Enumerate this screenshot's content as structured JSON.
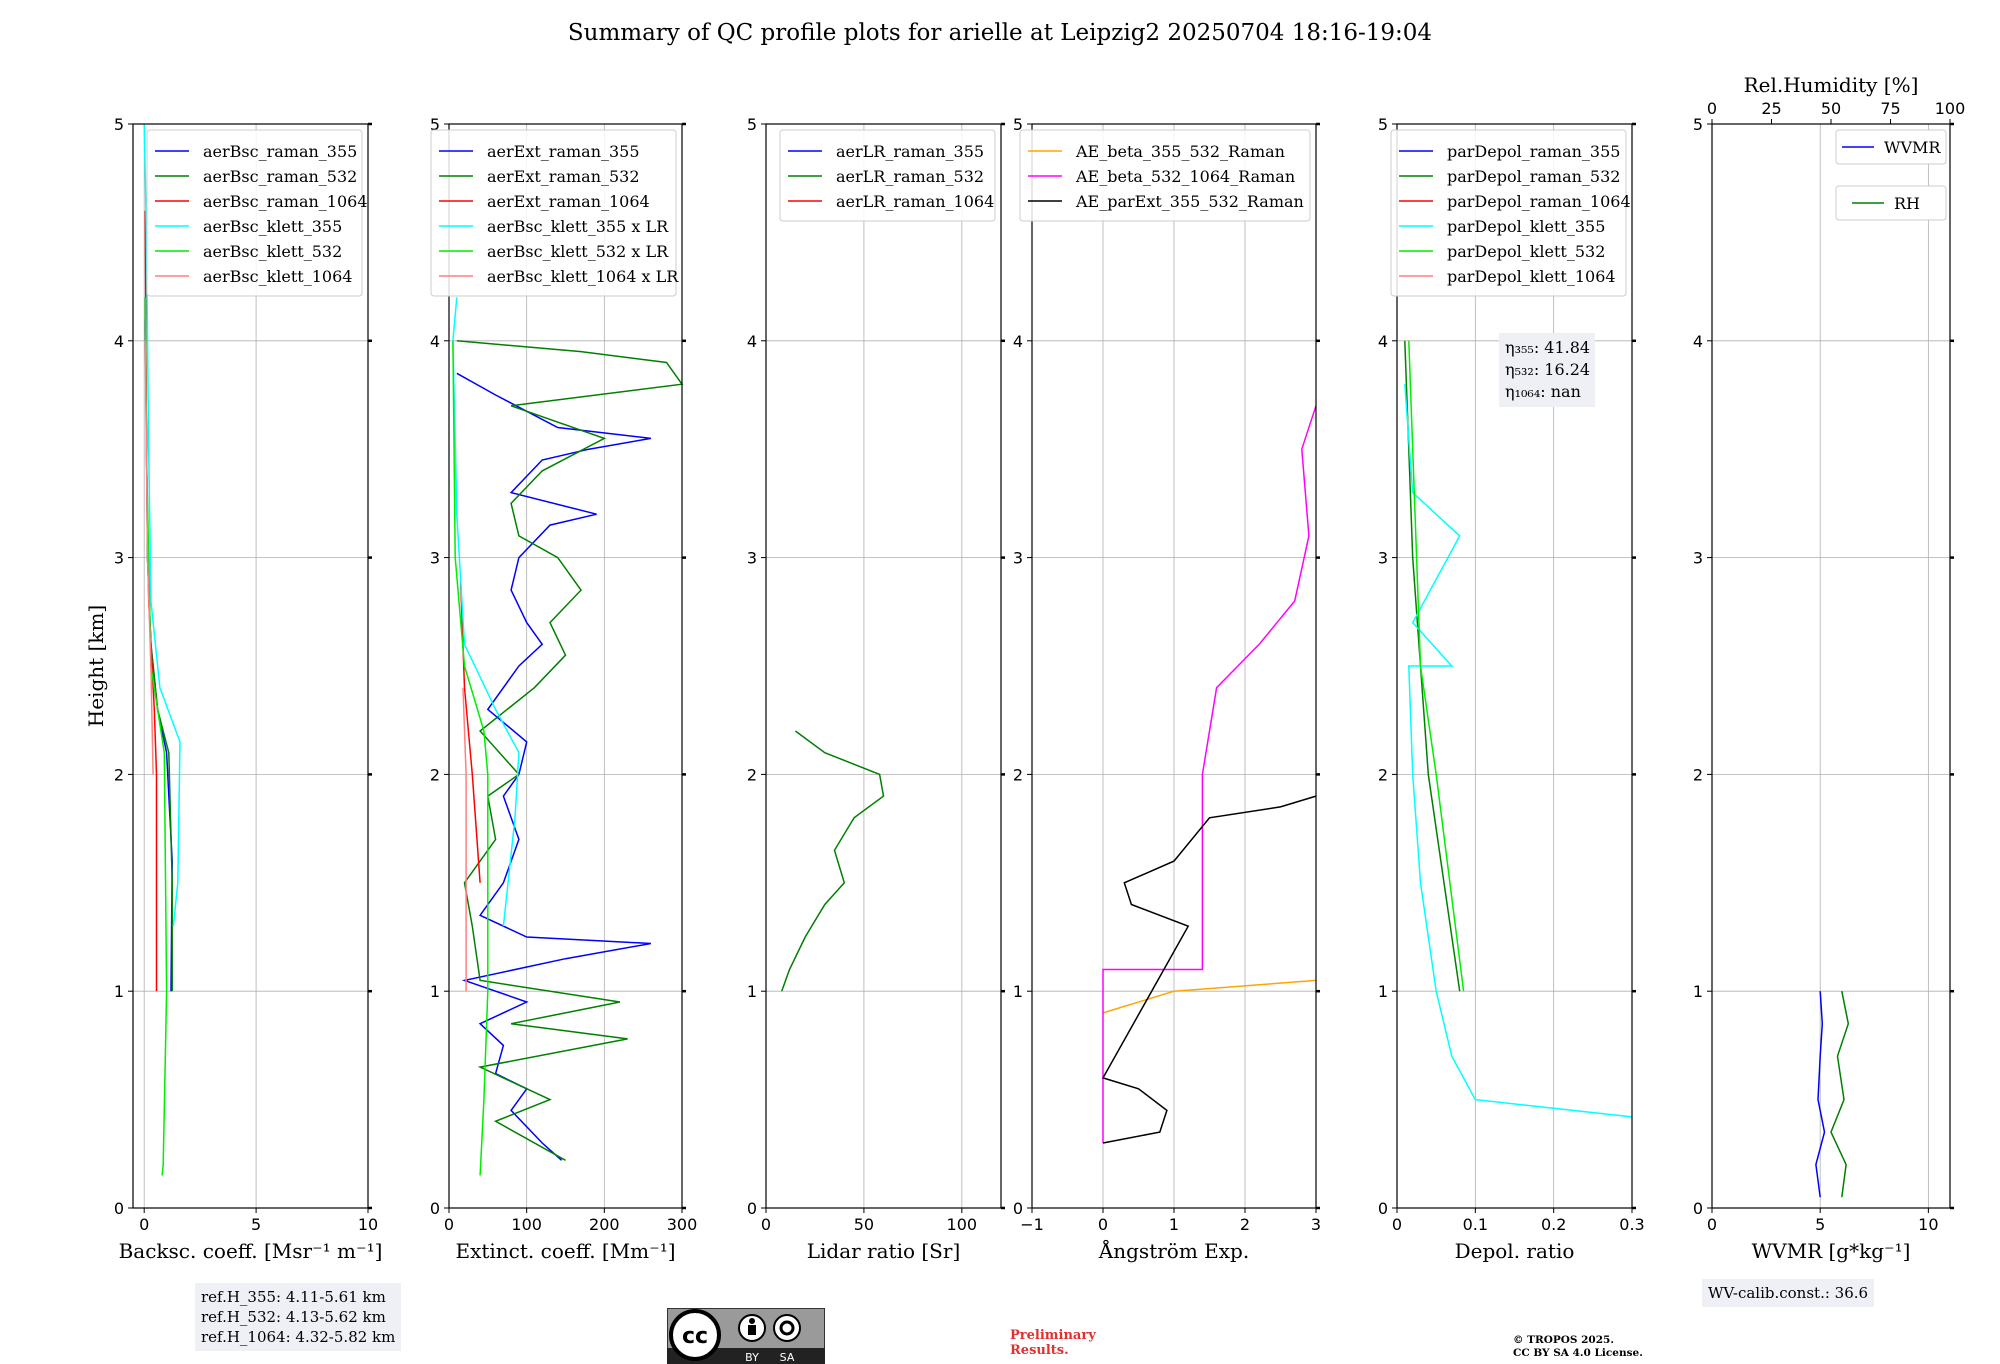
{
  "title": "Summary of QC profile plots for arielle at Leipzig2 20250704 18:16-19:04",
  "ylabel": "Height [km]",
  "footer": {
    "ref_heights": [
      "ref.H_355: 4.11-5.61 km",
      "ref.H_532: 4.13-5.62 km",
      "ref.H_1064: 4.32-5.82 km"
    ],
    "wv_calib": "WV-calib.const.: 36.6",
    "preliminary": [
      "Preliminary",
      "Results."
    ],
    "copyright": [
      "© TROPOS 2025.",
      "CC BY SA 4.0 License."
    ],
    "license_badge": {
      "by": "BY",
      "sa": "SA"
    }
  },
  "colors": {
    "blue": "#0000ff",
    "green": "#008000",
    "red": "#ff0000",
    "cyan": "#00ffff",
    "lime": "#00ee00",
    "pink": "#ff7f7f",
    "orange": "#ffa500",
    "magenta": "#ff00ff",
    "black": "#000000"
  },
  "chart_data": [
    {
      "type": "line",
      "xlabel": "Backsc. coeff. [Msr⁻¹ m⁻¹]",
      "ylabel": "Height [km]",
      "xlim": [
        -0.5,
        10
      ],
      "ylim": [
        0,
        5
      ],
      "xticks": [
        0,
        5,
        10
      ],
      "yticks": [
        0,
        1,
        2,
        3,
        4,
        5
      ],
      "grid": true,
      "legend_position": "upper-right",
      "series": [
        {
          "name": "aerBsc_raman_355",
          "color": "blue",
          "points": [
            [
              0.05,
              4.1
            ],
            [
              0.1,
              3.6
            ],
            [
              0.15,
              3
            ],
            [
              0.3,
              2.6
            ],
            [
              0.6,
              2.3
            ],
            [
              1.0,
              2.1
            ],
            [
              1.25,
              1.6
            ],
            [
              1.2,
              1.0
            ]
          ]
        },
        {
          "name": "aerBsc_raman_532",
          "color": "green",
          "points": [
            [
              0.05,
              4.2
            ],
            [
              0.1,
              3.6
            ],
            [
              0.15,
              3
            ],
            [
              0.3,
              2.6
            ],
            [
              0.6,
              2.3
            ],
            [
              1.1,
              2.1
            ],
            [
              1.25,
              1.5
            ],
            [
              1.25,
              1.0
            ]
          ]
        },
        {
          "name": "aerBsc_raman_1064",
          "color": "red",
          "points": [
            [
              0.05,
              4.6
            ],
            [
              0.1,
              3.5
            ],
            [
              0.2,
              2.8
            ],
            [
              0.45,
              2.3
            ],
            [
              0.55,
              2.0
            ],
            [
              0.55,
              1.0
            ]
          ]
        },
        {
          "name": "aerBsc_klett_355",
          "color": "cyan",
          "points": [
            [
              0.0,
              5
            ],
            [
              0.1,
              4.5
            ],
            [
              0.2,
              3.5
            ],
            [
              0.3,
              2.8
            ],
            [
              0.7,
              2.4
            ],
            [
              1.6,
              2.15
            ],
            [
              1.5,
              1.5
            ],
            [
              1.3,
              1.3
            ]
          ]
        },
        {
          "name": "aerBsc_klett_532",
          "color": "lime",
          "points": [
            [
              0.05,
              4.2
            ],
            [
              0.1,
              3.5
            ],
            [
              0.3,
              2.5
            ],
            [
              0.9,
              2.1
            ],
            [
              1.0,
              1.0
            ],
            [
              0.85,
              0.2
            ],
            [
              0.8,
              0.15
            ]
          ]
        },
        {
          "name": "aerBsc_klett_1064",
          "color": "pink",
          "points": [
            [
              0.05,
              4.0
            ],
            [
              0.15,
              3.0
            ],
            [
              0.3,
              2.5
            ],
            [
              0.4,
              2.0
            ]
          ]
        }
      ]
    },
    {
      "type": "line",
      "xlabel": "Extinct. coeff. [Mm⁻¹]",
      "xlim": [
        0,
        300
      ],
      "ylim": [
        0,
        5
      ],
      "xticks": [
        0,
        100,
        200,
        300
      ],
      "yticks": [
        0,
        1,
        2,
        3,
        4,
        5
      ],
      "grid": true,
      "legend_position": "upper-right",
      "series": [
        {
          "name": "aerExt_raman_355",
          "color": "blue",
          "points": [
            [
              145,
              0.22
            ],
            [
              120,
              0.3
            ],
            [
              80,
              0.45
            ],
            [
              100,
              0.55
            ],
            [
              60,
              0.62
            ],
            [
              70,
              0.75
            ],
            [
              40,
              0.85
            ],
            [
              100,
              0.95
            ],
            [
              20,
              1.05
            ],
            [
              150,
              1.15
            ],
            [
              260,
              1.22
            ],
            [
              100,
              1.25
            ],
            [
              40,
              1.35
            ],
            [
              70,
              1.5
            ],
            [
              90,
              1.7
            ],
            [
              70,
              1.9
            ],
            [
              90,
              2.0
            ],
            [
              100,
              2.15
            ],
            [
              50,
              2.3
            ],
            [
              90,
              2.5
            ],
            [
              120,
              2.6
            ],
            [
              100,
              2.7
            ],
            [
              80,
              2.85
            ],
            [
              90,
              3.0
            ],
            [
              130,
              3.15
            ],
            [
              190,
              3.2
            ],
            [
              80,
              3.3
            ],
            [
              120,
              3.45
            ],
            [
              180,
              3.5
            ],
            [
              260,
              3.55
            ],
            [
              140,
              3.6
            ],
            [
              60,
              3.75
            ],
            [
              10,
              3.85
            ]
          ]
        },
        {
          "name": "aerExt_raman_532",
          "color": "green",
          "points": [
            [
              150,
              0.22
            ],
            [
              60,
              0.4
            ],
            [
              130,
              0.5
            ],
            [
              40,
              0.65
            ],
            [
              230,
              0.78
            ],
            [
              80,
              0.85
            ],
            [
              220,
              0.95
            ],
            [
              40,
              1.05
            ],
            [
              30,
              1.3
            ],
            [
              20,
              1.5
            ],
            [
              60,
              1.7
            ],
            [
              50,
              1.9
            ],
            [
              90,
              2.0
            ],
            [
              40,
              2.2
            ],
            [
              110,
              2.4
            ],
            [
              150,
              2.55
            ],
            [
              130,
              2.7
            ],
            [
              170,
              2.85
            ],
            [
              140,
              3.0
            ],
            [
              90,
              3.1
            ],
            [
              80,
              3.25
            ],
            [
              120,
              3.4
            ],
            [
              200,
              3.55
            ],
            [
              80,
              3.7
            ],
            [
              300,
              3.8
            ],
            [
              280,
              3.9
            ],
            [
              170,
              3.95
            ],
            [
              10,
              4.0
            ]
          ]
        },
        {
          "name": "aerExt_raman_1064",
          "color": "red",
          "points": [
            [
              40,
              1.5
            ],
            [
              30,
              2.0
            ],
            [
              20,
              2.4
            ],
            [
              15,
              2.9
            ]
          ]
        },
        {
          "name": "aerBsc_klett_355 x LR",
          "color": "cyan",
          "points": [
            [
              70,
              1.3
            ],
            [
              85,
              1.8
            ],
            [
              90,
              2.1
            ],
            [
              60,
              2.3
            ],
            [
              20,
              2.6
            ],
            [
              10,
              3.2
            ],
            [
              5,
              4.0
            ],
            [
              10,
              4.2
            ]
          ]
        },
        {
          "name": "aerBsc_klett_532 x LR",
          "color": "lime",
          "points": [
            [
              40,
              0.15
            ],
            [
              45,
              0.5
            ],
            [
              50,
              1.0
            ],
            [
              50,
              1.5
            ],
            [
              50,
              2.0
            ],
            [
              45,
              2.2
            ],
            [
              20,
              2.5
            ],
            [
              8,
              3.0
            ],
            [
              5,
              4.0
            ]
          ]
        },
        {
          "name": "aerBsc_klett_1064 x LR",
          "color": "pink",
          "points": [
            [
              22,
              1.0
            ],
            [
              22,
              1.5
            ],
            [
              22,
              2.0
            ],
            [
              18,
              2.4
            ]
          ]
        }
      ]
    },
    {
      "type": "line",
      "xlabel": "Lidar ratio [Sr]",
      "xlim": [
        0,
        120
      ],
      "ylim": [
        0,
        5
      ],
      "xticks": [
        0,
        50,
        100
      ],
      "yticks": [
        0,
        1,
        2,
        3,
        4,
        5
      ],
      "grid": true,
      "legend_position": "upper-right",
      "series": [
        {
          "name": "aerLR_raman_355",
          "color": "blue",
          "points": []
        },
        {
          "name": "aerLR_raman_532",
          "color": "green",
          "points": [
            [
              8,
              1.0
            ],
            [
              12,
              1.1
            ],
            [
              20,
              1.25
            ],
            [
              30,
              1.4
            ],
            [
              40,
              1.5
            ],
            [
              35,
              1.65
            ],
            [
              45,
              1.8
            ],
            [
              60,
              1.9
            ],
            [
              58,
              2.0
            ],
            [
              30,
              2.1
            ],
            [
              15,
              2.2
            ]
          ]
        },
        {
          "name": "aerLR_raman_1064",
          "color": "red",
          "points": []
        }
      ]
    },
    {
      "type": "line",
      "xlabel": "Ångström Exp.",
      "xlim": [
        -1,
        3
      ],
      "ylim": [
        0,
        5
      ],
      "xticks": [
        -1,
        0,
        1,
        2,
        3
      ],
      "yticks": [
        0,
        1,
        2,
        3,
        4,
        5
      ],
      "grid": true,
      "legend_position": "upper-right",
      "series": [
        {
          "name": "AE_beta_355_532_Raman",
          "color": "orange",
          "points": [
            [
              0,
              0.9
            ],
            [
              1,
              1.0
            ],
            [
              3,
              1.05
            ]
          ]
        },
        {
          "name": "AE_beta_532_1064_Raman",
          "color": "magenta",
          "points": [
            [
              0,
              0.3
            ],
            [
              0,
              1.1
            ],
            [
              1.4,
              1.1
            ],
            [
              1.4,
              2.0
            ],
            [
              1.6,
              2.4
            ],
            [
              2.2,
              2.6
            ],
            [
              2.7,
              2.8
            ],
            [
              2.9,
              3.1
            ],
            [
              2.8,
              3.5
            ],
            [
              3.0,
              3.7
            ]
          ]
        },
        {
          "name": "AE_parExt_355_532_Raman",
          "color": "black",
          "points": [
            [
              0,
              0.3
            ],
            [
              0.8,
              0.35
            ],
            [
              0.9,
              0.45
            ],
            [
              0.5,
              0.55
            ],
            [
              0,
              0.6
            ],
            [
              1.2,
              1.3
            ],
            [
              0.4,
              1.4
            ],
            [
              0.3,
              1.5
            ],
            [
              1.0,
              1.6
            ],
            [
              1.5,
              1.8
            ],
            [
              2.5,
              1.85
            ],
            [
              3.0,
              1.9
            ]
          ]
        }
      ]
    },
    {
      "type": "line",
      "xlabel": "Depol. ratio",
      "xlim": [
        0,
        0.3
      ],
      "ylim": [
        0,
        5
      ],
      "xticks": [
        0.0,
        0.1,
        0.2,
        0.3
      ],
      "yticks": [
        0,
        1,
        2,
        3,
        4,
        5
      ],
      "grid": true,
      "legend_position": "upper-right",
      "series": [
        {
          "name": "parDepol_raman_355",
          "color": "blue",
          "points": []
        },
        {
          "name": "parDepol_raman_532",
          "color": "green",
          "points": [
            [
              0.08,
              1.0
            ],
            [
              0.04,
              2.0
            ],
            [
              0.03,
              2.5
            ],
            [
              0.02,
              3.0
            ],
            [
              0.015,
              3.5
            ],
            [
              0.01,
              4.0
            ]
          ]
        },
        {
          "name": "parDepol_raman_1064",
          "color": "red",
          "points": []
        },
        {
          "name": "parDepol_klett_355",
          "color": "cyan",
          "points": [
            [
              0.3,
              0.42
            ],
            [
              0.1,
              0.5
            ],
            [
              0.07,
              0.7
            ],
            [
              0.05,
              1.0
            ],
            [
              0.03,
              1.5
            ],
            [
              0.02,
              2.0
            ],
            [
              0.015,
              2.5
            ],
            [
              0.07,
              2.5
            ],
            [
              0.02,
              2.7
            ],
            [
              0.08,
              3.1
            ],
            [
              0.02,
              3.3
            ],
            [
              0.01,
              3.8
            ]
          ]
        },
        {
          "name": "parDepol_klett_532",
          "color": "lime",
          "points": [
            [
              0.085,
              1.0
            ],
            [
              0.05,
              2.0
            ],
            [
              0.03,
              2.5
            ],
            [
              0.025,
              3.0
            ],
            [
              0.02,
              3.5
            ],
            [
              0.015,
              4.0
            ]
          ]
        },
        {
          "name": "parDepol_klett_1064",
          "color": "pink",
          "points": []
        }
      ],
      "annotation": [
        "η₃₅₅: 41.84",
        "η₅₃₂: 16.24",
        "η₁₀₆₄: nan"
      ]
    },
    {
      "type": "line",
      "xlabel": "WVMR [g*kg⁻¹]",
      "xlabel_top": "Rel.Humidity [%]",
      "xlim": [
        0,
        11
      ],
      "ylim": [
        0,
        5
      ],
      "xticks": [
        0,
        5,
        10
      ],
      "xticks_top": [
        0,
        25,
        50,
        75,
        100
      ],
      "yticks": [
        0,
        1,
        2,
        3,
        4,
        5
      ],
      "grid": true,
      "legend_position": "upper-right",
      "series": [
        {
          "name": "WVMR",
          "color": "blue",
          "points": [
            [
              5,
              0.05
            ],
            [
              4.8,
              0.2
            ],
            [
              5.2,
              0.35
            ],
            [
              4.9,
              0.5
            ],
            [
              5,
              0.7
            ],
            [
              5.1,
              0.85
            ],
            [
              5,
              1.0
            ]
          ]
        },
        {
          "name": "RH",
          "color": "green",
          "points": [
            [
              6,
              0.05
            ],
            [
              6.2,
              0.2
            ],
            [
              5.5,
              0.35
            ],
            [
              6.1,
              0.5
            ],
            [
              5.8,
              0.7
            ],
            [
              6.3,
              0.85
            ],
            [
              6,
              1.0
            ]
          ]
        }
      ]
    }
  ]
}
